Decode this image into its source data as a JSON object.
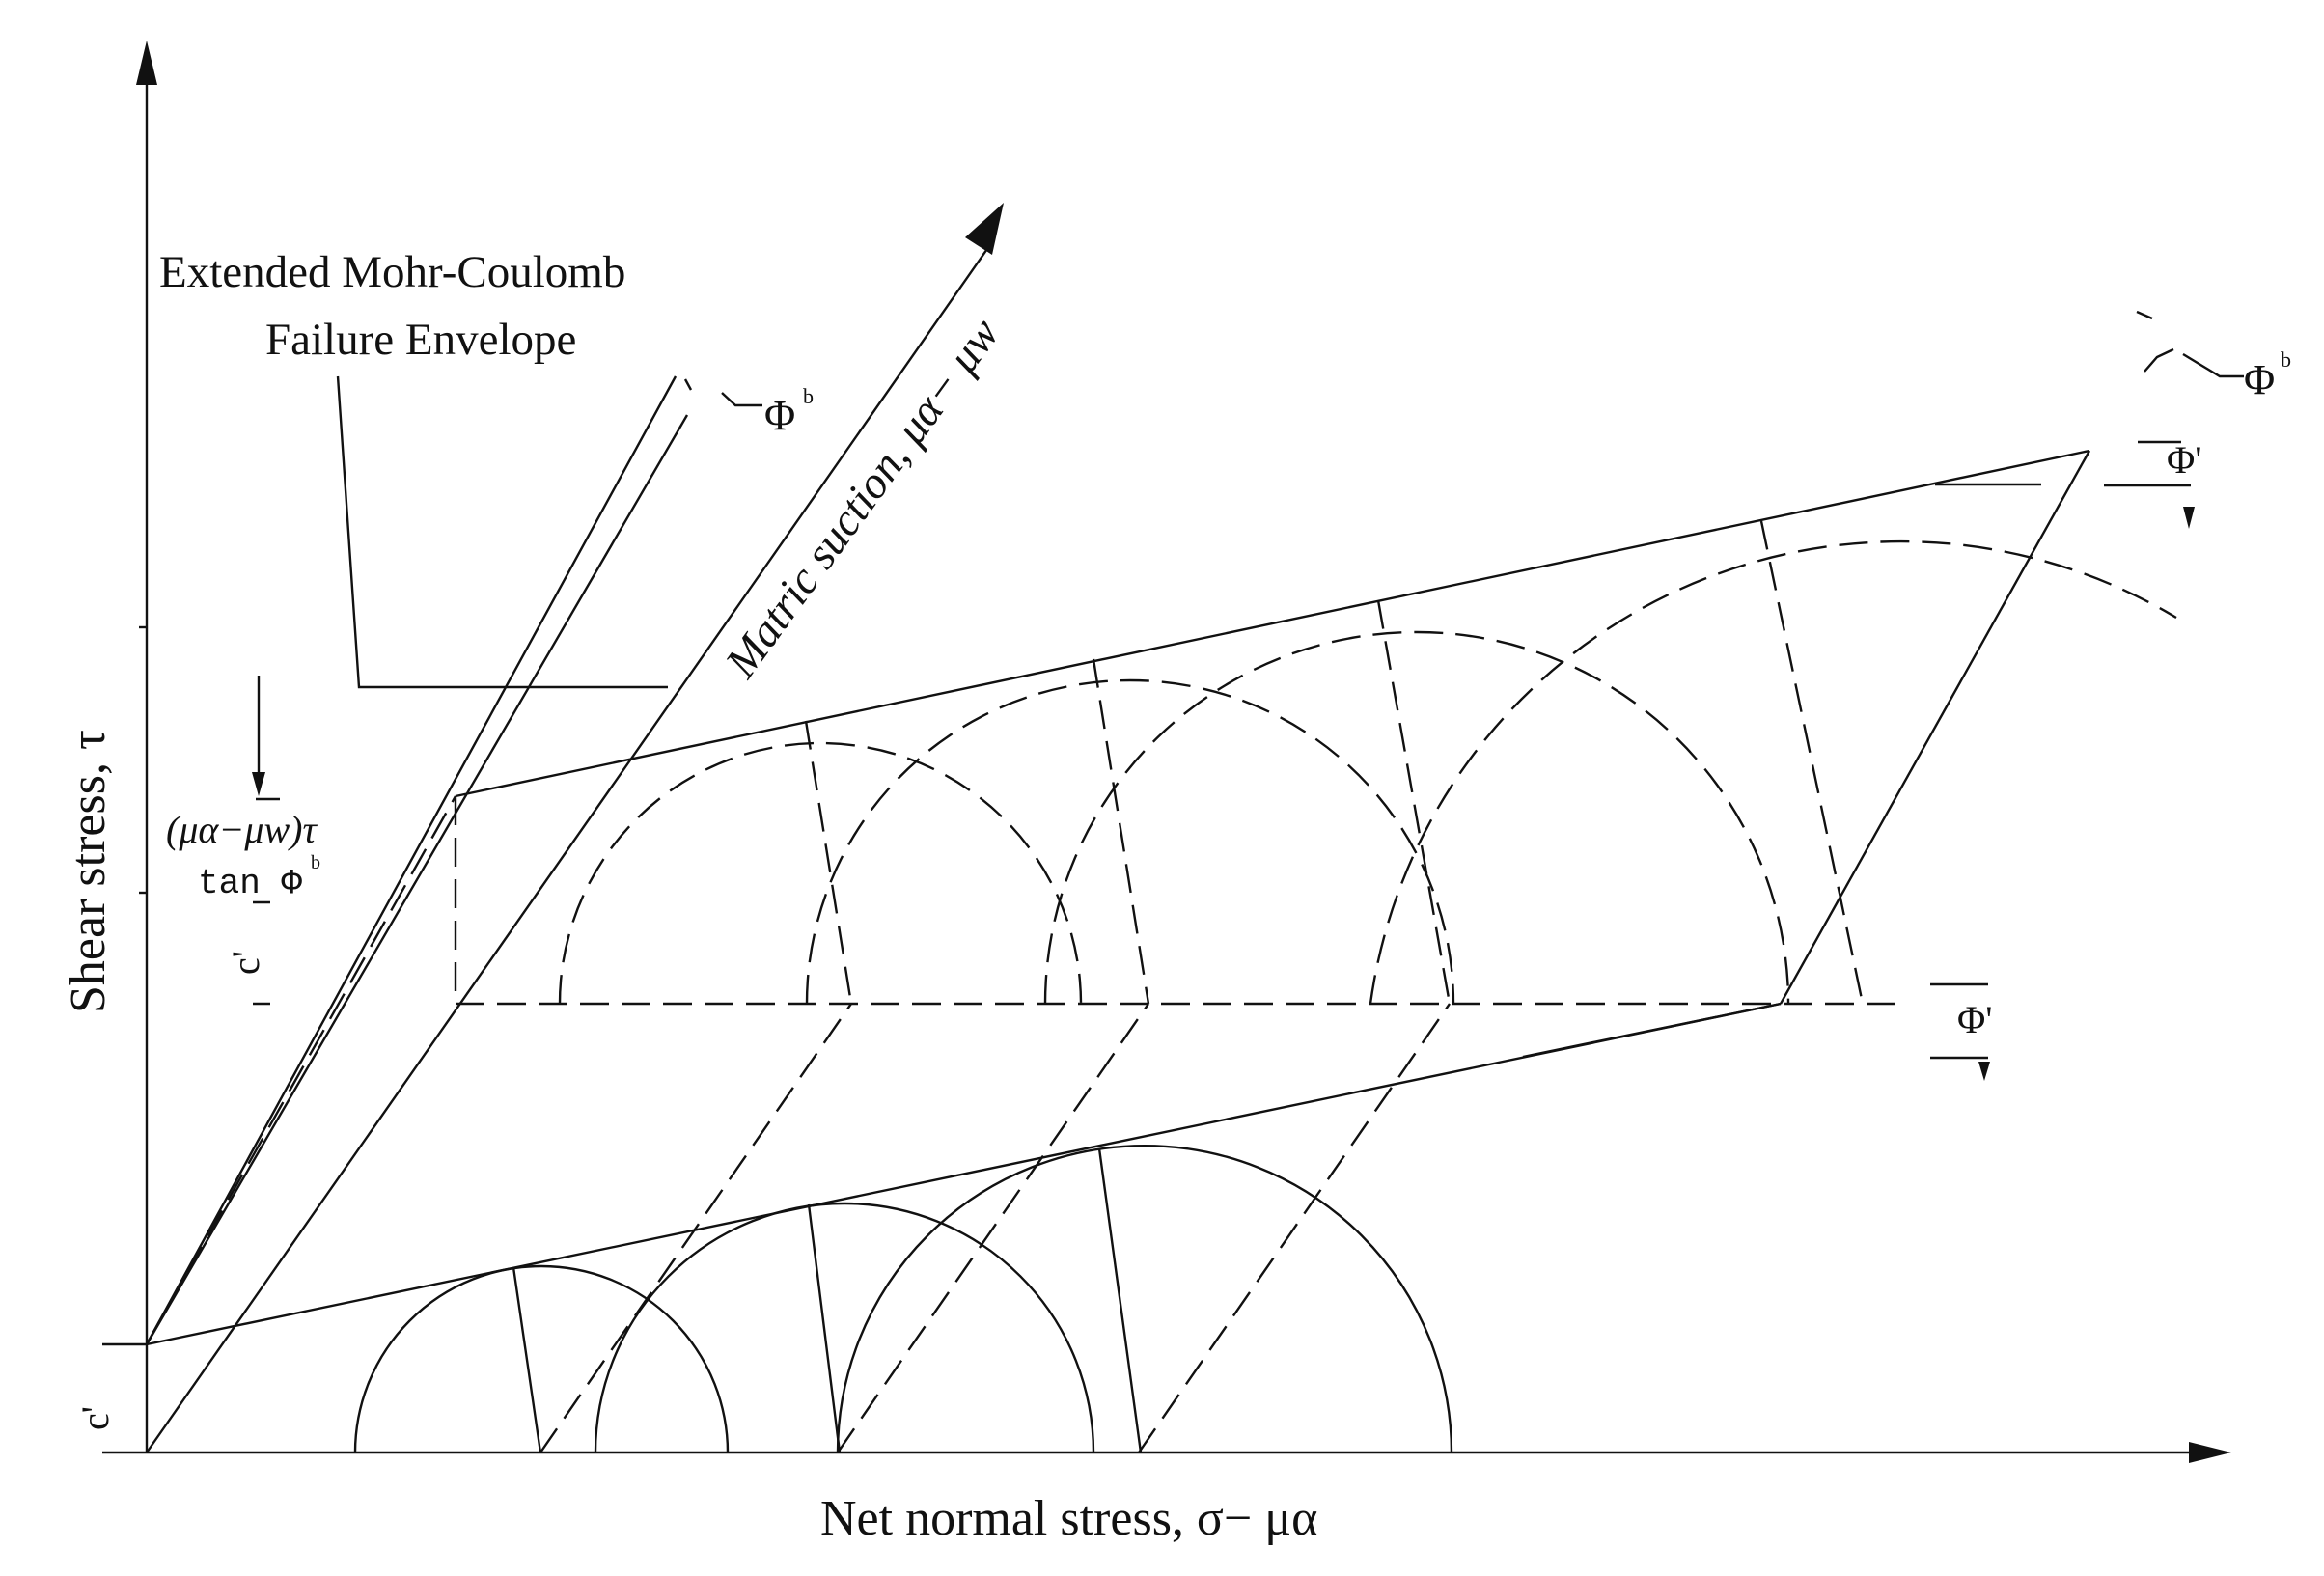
{
  "figure": {
    "labels": {
      "x_axis": "Net normal stress, σ− μα",
      "y_axis": "Shear stress, τ",
      "suction_axis": "Matric suction, μα− μw",
      "envelope_line1": "Extended Mohr-Coulomb",
      "envelope_line2": "Failure Envelope",
      "phi_b": "Φ",
      "phi_b_sup": "b",
      "phi_prime": "Φ'",
      "intercept_line1": "(μα−μw)τ",
      "intercept_line2": "tan Φ",
      "intercept_sup": "b",
      "c_prime_top": "c'",
      "c_prime_bottom": "c'"
    },
    "colors": {
      "line": "#111111",
      "background": "#ffffff"
    }
  }
}
